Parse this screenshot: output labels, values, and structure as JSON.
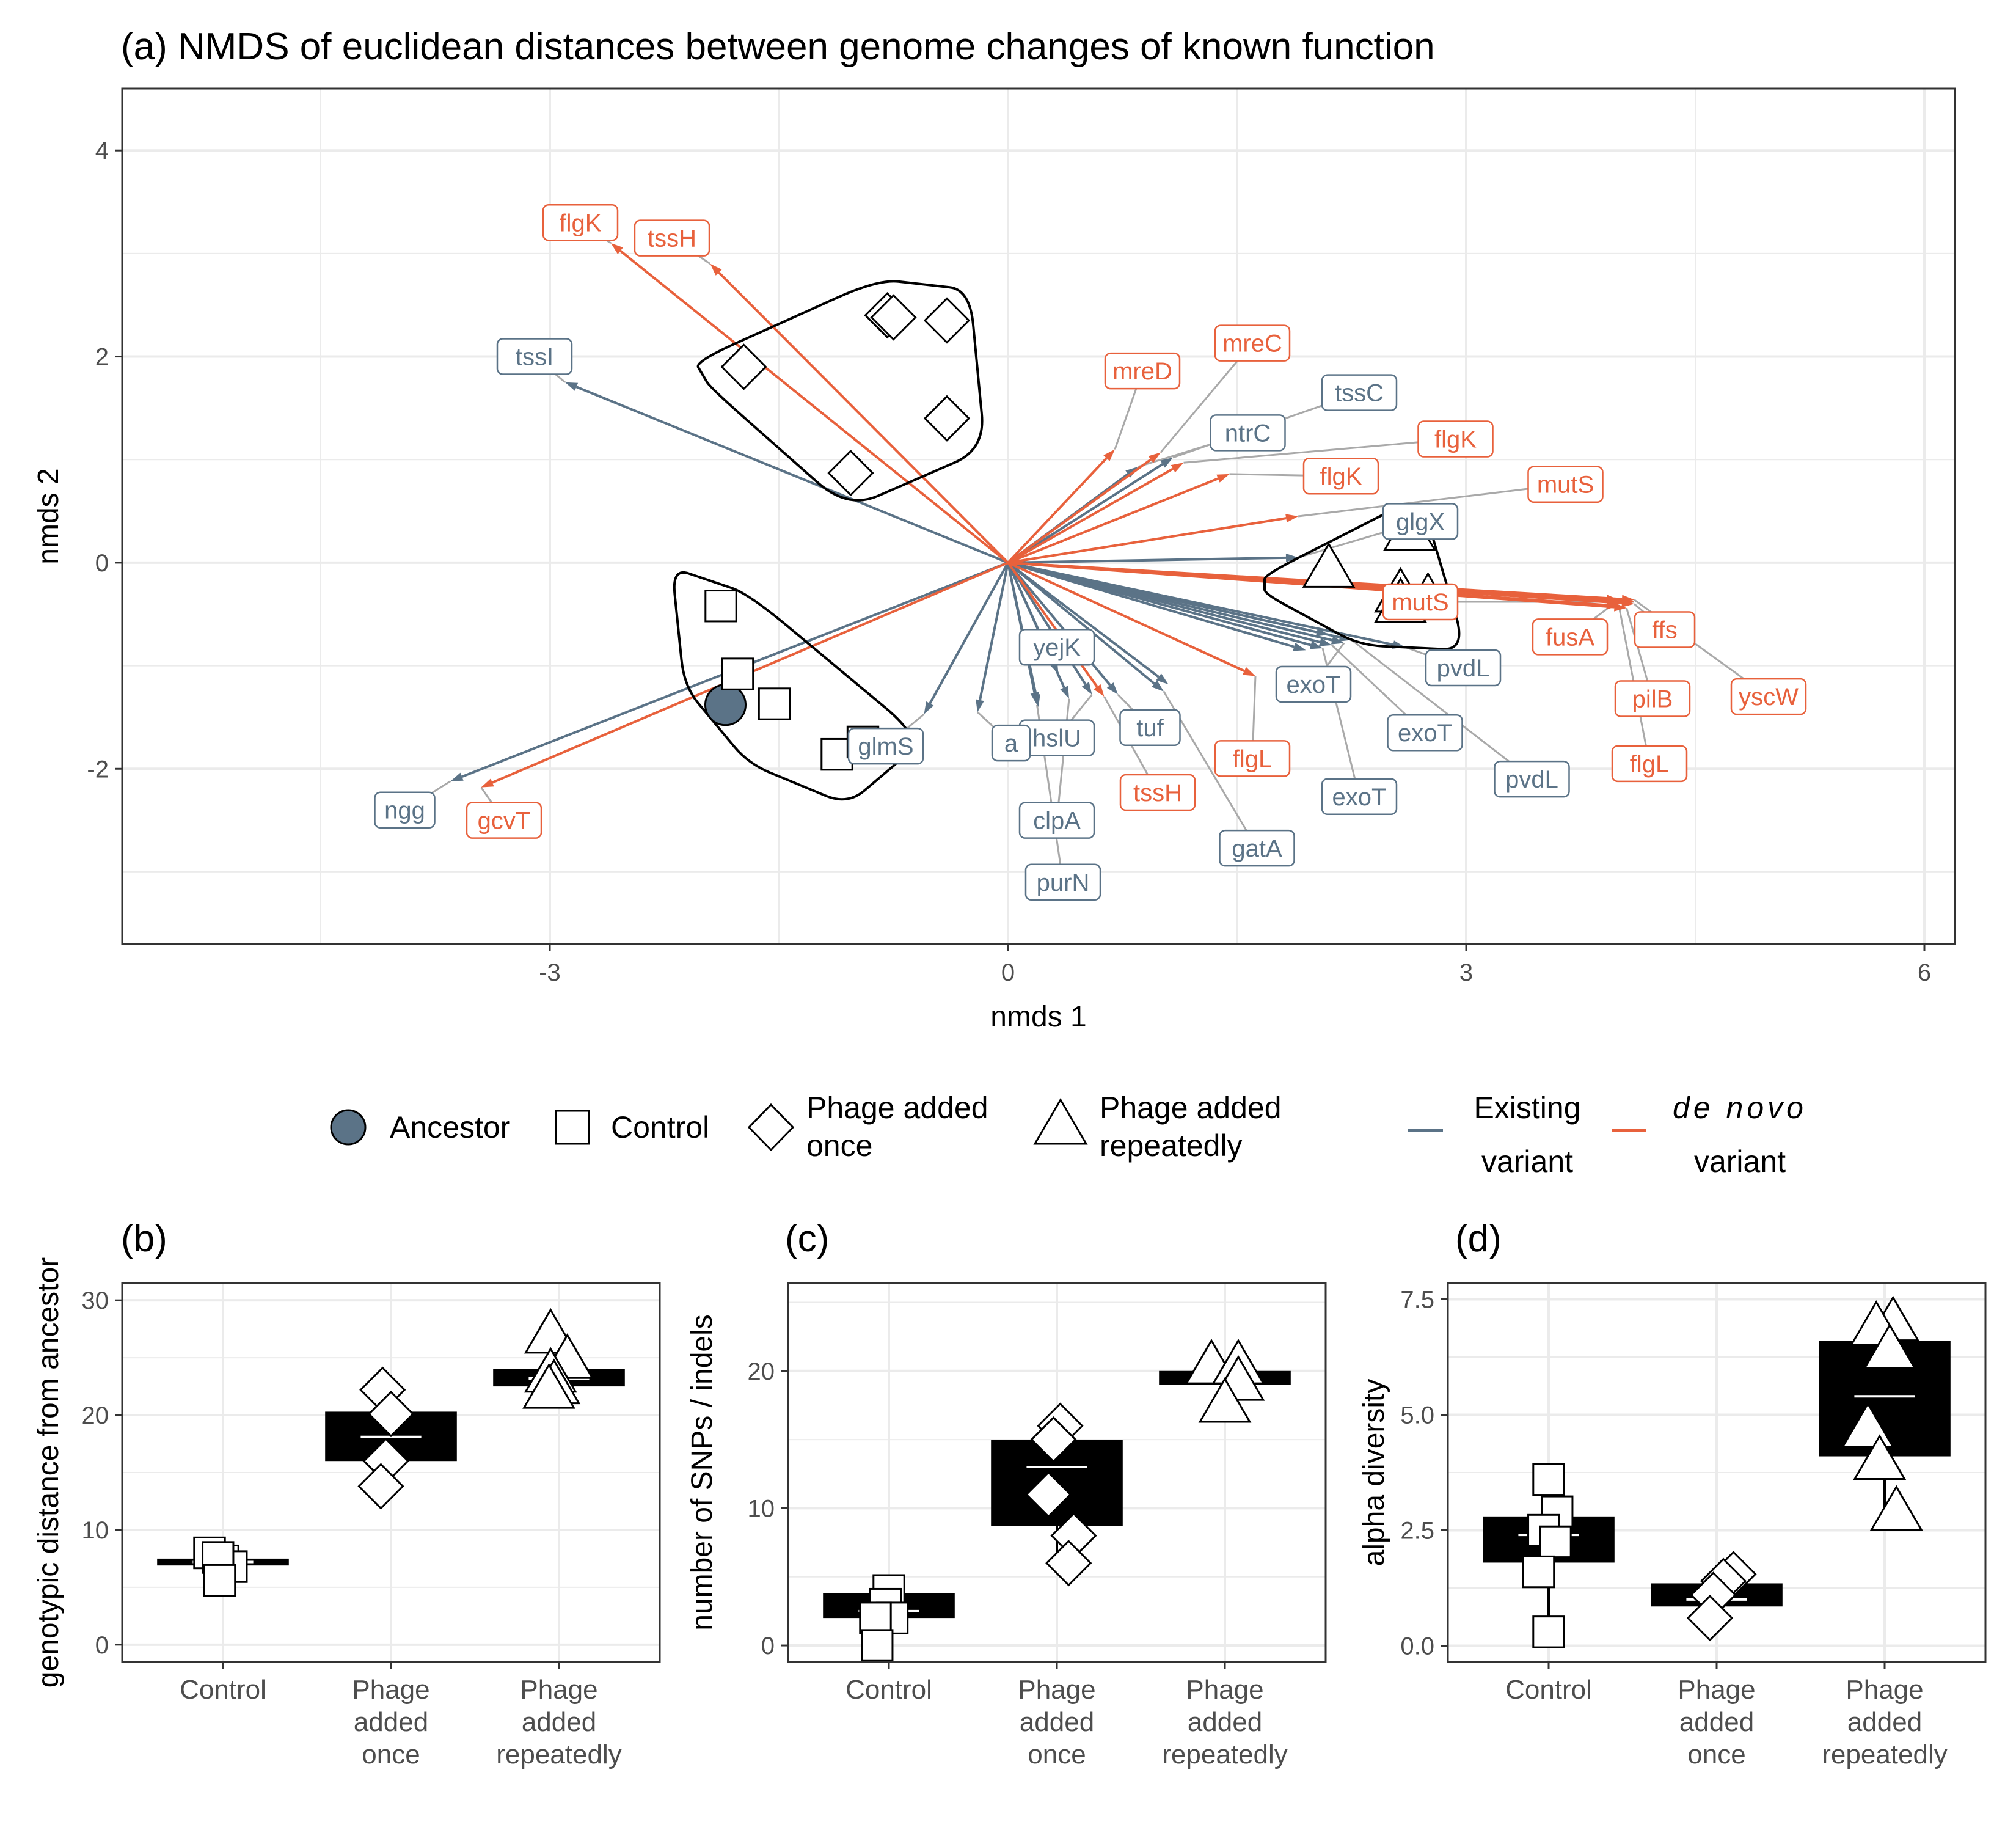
{
  "colors": {
    "existing": "#5b7387",
    "denovo": "#e8613c",
    "connector": "#a9a9a9",
    "grid": "#ebebeb",
    "ancestor_fill": "#5b7387"
  },
  "panel_a": {
    "title": "(a) NMDS of euclidean distances between genome changes of known function",
    "xlabel": "nmds 1",
    "ylabel": "nmds 2",
    "xlim": [
      -5.8,
      6.2
    ],
    "ylim": [
      -3.7,
      4.6
    ],
    "xticks": [
      -3,
      0,
      3,
      6
    ],
    "yticks": [
      4,
      2,
      0,
      -2
    ],
    "xtick_labels": [
      "-3",
      "0",
      "3",
      "6"
    ],
    "ytick_labels": [
      "4",
      "2",
      "0",
      "-2"
    ]
  },
  "chart_data": [
    {
      "type": "scatter",
      "panel": "a",
      "points": [
        {
          "group": "ancestor",
          "x": -1.85,
          "y": -1.38
        },
        {
          "group": "control",
          "x": -1.88,
          "y": -0.42
        },
        {
          "group": "control",
          "x": -1.77,
          "y": -1.08
        },
        {
          "group": "control",
          "x": -1.53,
          "y": -1.37
        },
        {
          "group": "control",
          "x": -1.12,
          "y": -1.86
        },
        {
          "group": "control",
          "x": -0.95,
          "y": -1.74
        },
        {
          "group": "once",
          "x": -1.73,
          "y": 1.9
        },
        {
          "group": "once",
          "x": -0.79,
          "y": 2.4
        },
        {
          "group": "once",
          "x": -0.75,
          "y": 2.38
        },
        {
          "group": "once",
          "x": -0.4,
          "y": 2.35
        },
        {
          "group": "once",
          "x": -0.4,
          "y": 1.4
        },
        {
          "group": "once",
          "x": -1.03,
          "y": 0.87
        },
        {
          "group": "repeat",
          "x": 2.63,
          "y": 0.3
        },
        {
          "group": "repeat",
          "x": 2.1,
          "y": -0.06
        },
        {
          "group": "repeat",
          "x": 2.57,
          "y": -0.3
        },
        {
          "group": "repeat",
          "x": 2.57,
          "y": -0.4
        },
        {
          "group": "repeat",
          "x": 2.75,
          "y": -0.35
        }
      ],
      "hulls": [
        {
          "group": "once",
          "points": [
            [
              -2.05,
              1.95
            ],
            [
              -0.85,
              2.75
            ],
            [
              -0.25,
              2.65
            ],
            [
              -0.15,
              1.1
            ],
            [
              -1.05,
              0.52
            ],
            [
              -1.95,
              1.7
            ]
          ]
        },
        {
          "group": "control",
          "points": [
            [
              -2.2,
              -0.05
            ],
            [
              -1.7,
              -0.3
            ],
            [
              -0.55,
              -1.72
            ],
            [
              -1.05,
              -2.35
            ],
            [
              -1.7,
              -1.95
            ],
            [
              -2.12,
              -1.2
            ]
          ]
        },
        {
          "group": "repeat",
          "points": [
            [
              1.68,
              -0.12
            ],
            [
              2.7,
              0.65
            ],
            [
              3.0,
              -0.85
            ],
            [
              2.3,
              -0.8
            ],
            [
              1.68,
              -0.3
            ]
          ]
        }
      ],
      "arrows": [
        {
          "label": "tssI",
          "type": "existing",
          "x": -2.9,
          "y": 1.75,
          "lx": -3.1,
          "ly": 2.0
        },
        {
          "label": "flgK",
          "type": "denovo",
          "x": -2.6,
          "y": 3.1,
          "lx": -2.8,
          "ly": 3.3
        },
        {
          "label": "tssH",
          "type": "denovo",
          "x": -1.95,
          "y": 2.9,
          "lx": -2.2,
          "ly": 3.15
        },
        {
          "label": "ngg",
          "type": "existing",
          "x": -3.65,
          "y": -2.12,
          "lx": -3.95,
          "ly": -2.4
        },
        {
          "label": "gcvT",
          "type": "denovo",
          "x": -3.45,
          "y": -2.18,
          "lx": -3.3,
          "ly": -2.5
        },
        {
          "label": "mreD",
          "type": "denovo",
          "x": 0.7,
          "y": 1.1,
          "lx": 0.88,
          "ly": 1.86
        },
        {
          "label": "mreC",
          "type": "denovo",
          "x": 1.0,
          "y": 1.07,
          "lx": 1.6,
          "ly": 2.13
        },
        {
          "label": "tssC",
          "type": "existing",
          "x": 1.08,
          "y": 1.02,
          "lx": 2.3,
          "ly": 1.65
        },
        {
          "label": "ntrC",
          "type": "existing",
          "x": 0.85,
          "y": 0.93,
          "lx": 1.57,
          "ly": 1.26
        },
        {
          "label": "flgK",
          "type": "denovo",
          "x": 1.15,
          "y": 0.97,
          "lx": 2.93,
          "ly": 1.2
        },
        {
          "label": "flgK",
          "type": "denovo",
          "x": 1.45,
          "y": 0.86,
          "lx": 2.18,
          "ly": 0.84
        },
        {
          "label": "mutS",
          "type": "denovo",
          "x": 1.9,
          "y": 0.45,
          "lx": 3.65,
          "ly": 0.76
        },
        {
          "label": "glgX",
          "type": "existing",
          "x": 1.9,
          "y": 0.05,
          "lx": 2.7,
          "ly": 0.4
        },
        {
          "label": "mutS",
          "type": "denovo",
          "x": 4.1,
          "y": -0.38,
          "lx": 2.7,
          "ly": -0.38
        },
        {
          "label": "fusA",
          "type": "denovo",
          "x": 4.0,
          "y": -0.36,
          "lx": 3.68,
          "ly": -0.72
        },
        {
          "label": "ffs",
          "type": "denovo",
          "x": 4.1,
          "y": -0.4,
          "lx": 4.3,
          "ly": -0.65
        },
        {
          "label": "pilB",
          "type": "denovo",
          "x": 4.05,
          "y": -0.44,
          "lx": 4.22,
          "ly": -1.32
        },
        {
          "label": "yscW",
          "type": "denovo",
          "x": 4.1,
          "y": -0.36,
          "lx": 4.98,
          "ly": -1.3
        },
        {
          "label": "flgL",
          "type": "denovo",
          "x": 4.0,
          "y": -0.42,
          "lx": 4.2,
          "ly": -1.95
        },
        {
          "label": "pvdL",
          "type": "existing",
          "x": 2.6,
          "y": -0.82,
          "lx": 2.98,
          "ly": -1.02
        },
        {
          "label": "pvdL",
          "type": "existing",
          "x": 2.25,
          "y": -0.75,
          "lx": 3.43,
          "ly": -2.1
        },
        {
          "label": "exoT",
          "type": "existing",
          "x": 2.2,
          "y": -0.78,
          "lx": 2.0,
          "ly": -1.18
        },
        {
          "label": "exoT",
          "type": "existing",
          "x": 2.12,
          "y": -0.8,
          "lx": 2.73,
          "ly": -1.65
        },
        {
          "label": "exoT",
          "type": "existing",
          "x": 2.06,
          "y": -0.83,
          "lx": 2.3,
          "ly": -2.27
        },
        {
          "label": "flgL",
          "type": "denovo",
          "x": 1.62,
          "y": -1.1,
          "lx": 1.6,
          "ly": -1.9
        },
        {
          "label": "gatA",
          "type": "existing",
          "x": 1.02,
          "y": -1.25,
          "lx": 1.63,
          "ly": -2.77
        },
        {
          "label": "tuf",
          "type": "existing",
          "x": 0.72,
          "y": -1.28,
          "lx": 0.93,
          "ly": -1.6
        },
        {
          "label": "tssH",
          "type": "denovo",
          "x": 0.63,
          "y": -1.3,
          "lx": 0.98,
          "ly": -2.23
        },
        {
          "label": "yejK",
          "type": "existing",
          "x": 0.33,
          "y": -1.08,
          "lx": 0.32,
          "ly": -0.82
        },
        {
          "label": "hslU",
          "type": "existing",
          "x": 0.55,
          "y": -1.28,
          "lx": 0.32,
          "ly": -1.7
        },
        {
          "label": "clpA",
          "type": "existing",
          "x": 0.4,
          "y": -1.32,
          "lx": 0.32,
          "ly": -2.5
        },
        {
          "label": "purN",
          "type": "existing",
          "x": 0.19,
          "y": -1.38,
          "lx": 0.36,
          "ly": -3.1
        },
        {
          "label": "a",
          "type": "existing",
          "x": -0.2,
          "y": -1.45,
          "lx": 0.02,
          "ly": -1.75
        },
        {
          "label": "glmS",
          "type": "existing",
          "x": -0.55,
          "y": -1.47,
          "lx": -0.8,
          "ly": -1.78
        },
        {
          "label": "",
          "type": "existing",
          "x": 2.1,
          "y": -0.7,
          "lx": null,
          "ly": null
        },
        {
          "label": "",
          "type": "existing",
          "x": 1.95,
          "y": -0.85,
          "lx": null,
          "ly": null
        },
        {
          "label": "",
          "type": "existing",
          "x": 1.05,
          "y": -1.18,
          "lx": null,
          "ly": null
        },
        {
          "label": "",
          "type": "existing",
          "x": 0.2,
          "y": -1.4,
          "lx": null,
          "ly": null
        }
      ]
    },
    {
      "type": "box",
      "panel": "b",
      "title": "(b)",
      "ylabel": "genotypic distance from ancestor",
      "categories": [
        "Control",
        "Phage added once",
        "Phage added repeatedly"
      ],
      "category_lines": [
        [
          "Control"
        ],
        [
          "Phage",
          "added",
          "once"
        ],
        [
          "Phage",
          "added",
          "repeatedly"
        ]
      ],
      "ylim": [
        -1.5,
        31.5
      ],
      "yticks": [
        0,
        10,
        20,
        30
      ],
      "ytick_labels": [
        "0",
        "10",
        "20",
        "30"
      ],
      "boxes": [
        {
          "q1": 6.9,
          "q3": 7.5,
          "mean": 7.2
        },
        {
          "q1": 16.0,
          "q3": 20.3,
          "mean": 18.1,
          "whisker": [
            13.8,
            22.2
          ]
        },
        {
          "q1": 22.5,
          "q3": 24.0,
          "mean": 23.2,
          "whisker": [
            22.2,
            27.0
          ]
        }
      ],
      "points": [
        {
          "cat": 0,
          "dx": -0.08,
          "y": 8.0
        },
        {
          "cat": 0,
          "dx": 0.0,
          "y": 7.3
        },
        {
          "cat": 0,
          "dx": 0.05,
          "y": 6.8
        },
        {
          "cat": 0,
          "dx": -0.03,
          "y": 7.6
        },
        {
          "cat": 0,
          "dx": -0.02,
          "y": 5.6
        },
        {
          "cat": 1,
          "dx": -0.05,
          "y": 22.2
        },
        {
          "cat": 1,
          "dx": 0.0,
          "y": 20.1
        },
        {
          "cat": 1,
          "dx": -0.03,
          "y": 16.0
        },
        {
          "cat": 1,
          "dx": -0.06,
          "y": 13.8
        },
        {
          "cat": 2,
          "dx": -0.05,
          "y": 27.0
        },
        {
          "cat": 2,
          "dx": 0.05,
          "y": 24.8
        },
        {
          "cat": 2,
          "dx": -0.05,
          "y": 23.6
        },
        {
          "cat": 2,
          "dx": -0.03,
          "y": 22.6
        },
        {
          "cat": 2,
          "dx": -0.06,
          "y": 22.2
        }
      ]
    },
    {
      "type": "box",
      "panel": "c",
      "title": "(c)",
      "ylabel": "number of SNPs / indels",
      "categories": [
        "Control",
        "Phage added once",
        "Phage added repeatedly"
      ],
      "category_lines": [
        [
          "Control"
        ],
        [
          "Phage",
          "added",
          "once"
        ],
        [
          "Phage",
          "added",
          "repeatedly"
        ]
      ],
      "ylim": [
        -1.2,
        26.4
      ],
      "yticks": [
        0,
        10,
        20
      ],
      "ytick_labels": [
        "0",
        "10",
        "20"
      ],
      "boxes": [
        {
          "q1": 2.0,
          "q3": 3.8,
          "mean": 2.5
        },
        {
          "q1": 8.7,
          "q3": 15.0,
          "mean": 13.0,
          "whisker": [
            6.0,
            16.0
          ]
        },
        {
          "q1": 19.0,
          "q3": 20.0,
          "mean": 19.6,
          "whisker": [
            17.5,
            20.5
          ]
        }
      ],
      "points": [
        {
          "cat": 0,
          "dx": 0.0,
          "y": 4.0
        },
        {
          "cat": 0,
          "dx": -0.02,
          "y": 3.0
        },
        {
          "cat": 0,
          "dx": 0.02,
          "y": 2.0
        },
        {
          "cat": 0,
          "dx": -0.08,
          "y": 2.0
        },
        {
          "cat": 0,
          "dx": -0.07,
          "y": 0.0
        },
        {
          "cat": 1,
          "dx": 0.02,
          "y": 16.0
        },
        {
          "cat": 1,
          "dx": -0.02,
          "y": 15.0
        },
        {
          "cat": 1,
          "dx": -0.05,
          "y": 11.0
        },
        {
          "cat": 1,
          "dx": 0.1,
          "y": 8.0
        },
        {
          "cat": 1,
          "dx": 0.07,
          "y": 6.0
        },
        {
          "cat": 2,
          "dx": -0.08,
          "y": 20.4
        },
        {
          "cat": 2,
          "dx": 0.08,
          "y": 20.4
        },
        {
          "cat": 2,
          "dx": 0.08,
          "y": 19.2
        },
        {
          "cat": 2,
          "dx": 0.0,
          "y": 17.6
        }
      ]
    },
    {
      "type": "box",
      "panel": "d",
      "title": "(d)",
      "ylabel": "alpha diversity",
      "categories": [
        "Control",
        "Phage added once",
        "Phage added repeatedly"
      ],
      "category_lines": [
        [
          "Control"
        ],
        [
          "Phage",
          "added",
          "once"
        ],
        [
          "Phage",
          "added",
          "repeatedly"
        ]
      ],
      "ylim": [
        -0.35,
        7.85
      ],
      "yticks": [
        0,
        2.5,
        5,
        7.5
      ],
      "ytick_labels": [
        "0.0",
        "2.5",
        "5.0",
        "7.5"
      ],
      "boxes": [
        {
          "q1": 1.8,
          "q3": 2.8,
          "mean": 2.4,
          "whisker": [
            0.3,
            3.6
          ]
        },
        {
          "q1": 0.85,
          "q3": 1.35,
          "mean": 1.0,
          "whisker": [
            0.6,
            1.55
          ]
        },
        {
          "q1": 4.1,
          "q3": 6.6,
          "mean": 5.4,
          "whisker": [
            2.9,
            7.0
          ]
        }
      ],
      "points": [
        {
          "cat": 0,
          "dx": 0.0,
          "y": 3.6
        },
        {
          "cat": 0,
          "dx": 0.05,
          "y": 2.9
        },
        {
          "cat": 0,
          "dx": -0.03,
          "y": 2.5
        },
        {
          "cat": 0,
          "dx": 0.04,
          "y": 2.25
        },
        {
          "cat": 0,
          "dx": -0.06,
          "y": 1.6
        },
        {
          "cat": 0,
          "dx": 0.0,
          "y": 0.3
        },
        {
          "cat": 1,
          "dx": 0.1,
          "y": 1.55
        },
        {
          "cat": 1,
          "dx": 0.04,
          "y": 1.4
        },
        {
          "cat": 1,
          "dx": -0.02,
          "y": 1.1
        },
        {
          "cat": 1,
          "dx": -0.04,
          "y": 0.6
        },
        {
          "cat": 2,
          "dx": 0.05,
          "y": 7.0
        },
        {
          "cat": 2,
          "dx": -0.05,
          "y": 6.9
        },
        {
          "cat": 2,
          "dx": 0.03,
          "y": 6.4
        },
        {
          "cat": 2,
          "dx": -0.1,
          "y": 4.7
        },
        {
          "cat": 2,
          "dx": -0.03,
          "y": 4.0
        },
        {
          "cat": 2,
          "dx": 0.07,
          "y": 2.9
        }
      ]
    }
  ],
  "legend": {
    "ancestor": "Ancestor",
    "control": "Control",
    "once": [
      "Phage added",
      "once"
    ],
    "repeat": [
      "Phage added",
      "repeatedly"
    ],
    "existing": [
      "Existing",
      "variant"
    ],
    "denovo": [
      "de novo",
      "variant"
    ]
  }
}
